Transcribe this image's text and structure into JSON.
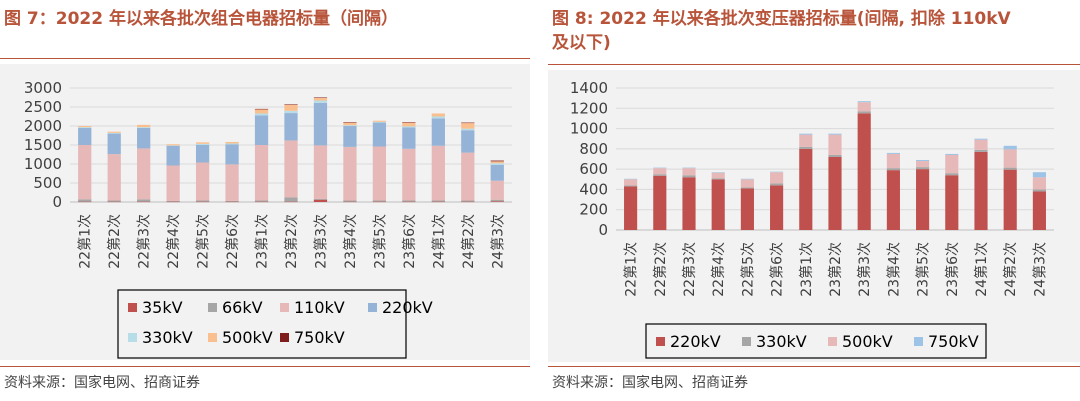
{
  "left": {
    "title": "图 7：2022 年以来各批次组合电器招标量（间隔）",
    "source": "资料来源：国家电网、招商证券"
  },
  "right": {
    "title_line1": "图 8: 2022 年以来各批次变压器招标量(间隔, 扣除 110kV",
    "title_line2": "及以下)",
    "source": "资料来源：国家电网、招商证券"
  },
  "colors": {
    "title": "#b8543a",
    "rule": "#b8543a",
    "panel_bg": "#f2f2f2",
    "35kV": "#c0504d",
    "66kV": "#a6a6a6",
    "110kV": "#e6b9b8",
    "220kV": "#95b3d7",
    "330kV": "#b7dee8",
    "500kV": "#fabf8f",
    "750kV": "#7f1d1d",
    "r220kV": "#c0504d",
    "r330kV": "#a6a6a6",
    "r500kV": "#e6b9b8",
    "r750kV": "#9dc3e6"
  },
  "chart_data": [
    {
      "type": "stacked-bar",
      "title": "图 7：2022 年以来各批次组合电器招标量（间隔）",
      "categories": [
        "22第1次",
        "22第2次",
        "22第3次",
        "22第4次",
        "22第5次",
        "22第6次",
        "23第1次",
        "23第2次",
        "23第3次",
        "23第4次",
        "23第5次",
        "23第6次",
        "24第1次",
        "24第2次",
        "24第3次"
      ],
      "ylim": [
        0,
        3000
      ],
      "yticks": [
        0,
        500,
        1000,
        1500,
        2000,
        2500,
        3000
      ],
      "legend_position": "bottom",
      "series": [
        {
          "name": "35kV",
          "values": [
            10,
            10,
            10,
            10,
            10,
            10,
            10,
            10,
            60,
            10,
            10,
            10,
            10,
            10,
            20
          ]
        },
        {
          "name": "66kV",
          "values": [
            60,
            30,
            60,
            20,
            30,
            20,
            30,
            110,
            20,
            30,
            30,
            30,
            30,
            30,
            40
          ]
        },
        {
          "name": "110kV",
          "values": [
            1430,
            1220,
            1340,
            930,
            1000,
            960,
            1460,
            1500,
            1410,
            1410,
            1420,
            1360,
            1440,
            1260,
            500
          ]
        },
        {
          "name": "220kV",
          "values": [
            450,
            540,
            540,
            520,
            460,
            530,
            780,
            720,
            1120,
            550,
            630,
            560,
            720,
            590,
            420
          ]
        },
        {
          "name": "330kV",
          "values": [
            20,
            20,
            20,
            10,
            30,
            20,
            50,
            60,
            60,
            20,
            20,
            30,
            50,
            40,
            40
          ]
        },
        {
          "name": "500kV",
          "values": [
            30,
            30,
            60,
            30,
            40,
            40,
            110,
            160,
            70,
            70,
            30,
            100,
            80,
            150,
            50
          ]
        },
        {
          "name": "750kV",
          "values": [
            0,
            0,
            0,
            0,
            0,
            0,
            10,
            10,
            10,
            10,
            0,
            10,
            0,
            10,
            20
          ]
        }
      ]
    },
    {
      "type": "stacked-bar",
      "title": "图 8: 2022 年以来各批次变压器招标量(间隔, 扣除 110kV 及以下)",
      "categories": [
        "22第1次",
        "22第2次",
        "22第3次",
        "22第4次",
        "22第5次",
        "22第6次",
        "23第1次",
        "23第2次",
        "23第3次",
        "23第4次",
        "23第5次",
        "23第6次",
        "24第1次",
        "24第2次",
        "24第3次"
      ],
      "ylim": [
        0,
        1400
      ],
      "yticks": [
        0,
        200,
        400,
        600,
        800,
        1000,
        1200,
        1400
      ],
      "legend_position": "bottom",
      "series": [
        {
          "name": "220kV",
          "values": [
            430,
            535,
            520,
            500,
            410,
            440,
            800,
            720,
            1150,
            590,
            600,
            540,
            770,
            595,
            380
          ]
        },
        {
          "name": "330kV",
          "values": [
            10,
            15,
            20,
            10,
            10,
            20,
            20,
            20,
            20,
            20,
            20,
            20,
            20,
            20,
            20
          ]
        },
        {
          "name": "500kV",
          "values": [
            60,
            60,
            70,
            55,
            80,
            110,
            120,
            200,
            90,
            140,
            60,
            180,
            100,
            180,
            120
          ]
        },
        {
          "name": "750kV",
          "values": [
            5,
            5,
            5,
            5,
            5,
            5,
            10,
            10,
            10,
            10,
            10,
            10,
            10,
            35,
            50
          ]
        }
      ]
    }
  ]
}
